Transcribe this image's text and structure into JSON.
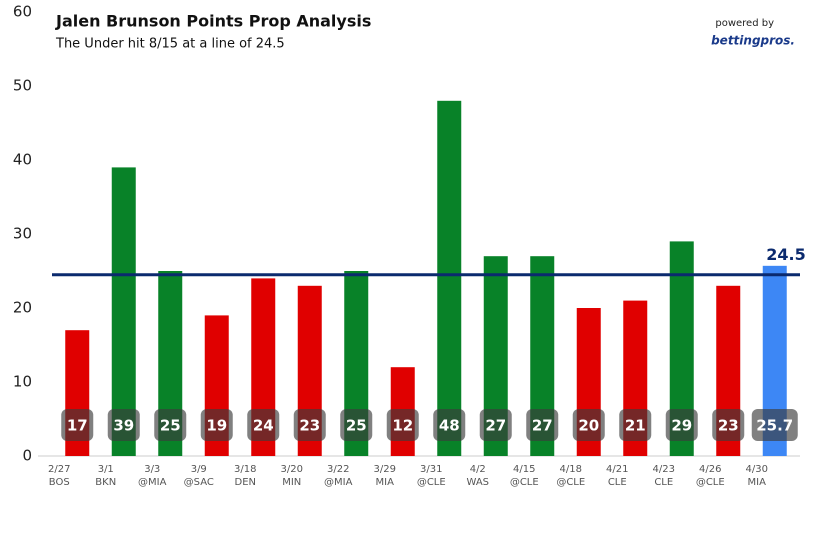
{
  "chart_data": {
    "type": "bar",
    "title": "Jalen Brunson Points Prop Analysis",
    "subtitle": "The Under hit 8/15 at a line of 24.5",
    "branding": {
      "powered": "powered by",
      "brand": "bettingpros."
    },
    "categories": [
      "2/27",
      "3/1",
      "3/3",
      "3/9",
      "3/18",
      "3/20",
      "3/22",
      "3/29",
      "3/31",
      "4/2",
      "4/15",
      "4/18",
      "4/21",
      "4/23",
      "4/26",
      "4/30"
    ],
    "opponents": [
      "BOS",
      "BKN",
      "@MIA",
      "@SAC",
      "DEN",
      "MIN",
      "@MIA",
      "MIA",
      "@CLE",
      "WAS",
      "@CLE",
      "@CLE",
      "CLE",
      "CLE",
      "@CLE",
      "MIA"
    ],
    "values": [
      17,
      39,
      25,
      19,
      24,
      23,
      25,
      12,
      48,
      27,
      27,
      20,
      21,
      29,
      23,
      25.7
    ],
    "colors": [
      "#e00000",
      "#088228",
      "#088228",
      "#e00000",
      "#e00000",
      "#e00000",
      "#088228",
      "#e00000",
      "#088228",
      "#088228",
      "#088228",
      "#e00000",
      "#e00000",
      "#088228",
      "#e00000",
      "#3d87f5"
    ],
    "line": {
      "value": 24.5,
      "label": "24.5",
      "color": "#0b2a6e"
    },
    "ylim": [
      0,
      60
    ],
    "yticks": [
      0,
      10,
      20,
      30,
      40,
      50,
      60
    ]
  }
}
